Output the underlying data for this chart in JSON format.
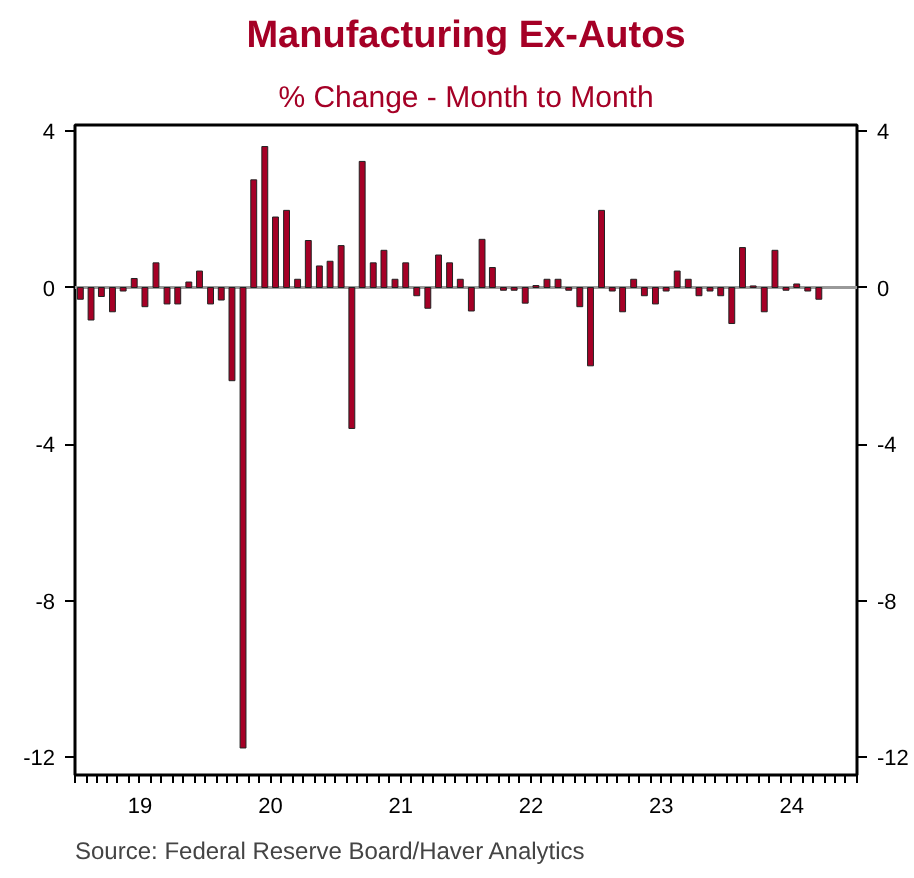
{
  "chart_data": {
    "type": "bar",
    "title": "Manufacturing Ex-Autos",
    "subtitle": "% Change - Month to Month",
    "annotations": [
      "Source:  Federal Reserve Board/Haver Analytics"
    ],
    "x": [
      "2019-01-16",
      "2019-02-15",
      "2019-03-16",
      "2019-04-16",
      "2019-05-16",
      "2019-06-16",
      "2019-07-16",
      "2019-08-16",
      "2019-09-16",
      "2019-10-16",
      "2019-11-16",
      "2019-12-16",
      "2020-01-16",
      "2020-02-15",
      "2020-03-16",
      "2020-04-16",
      "2020-05-16",
      "2020-06-16",
      "2020-07-16",
      "2020-08-16",
      "2020-09-16",
      "2020-10-16",
      "2020-11-16",
      "2020-12-16",
      "2021-01-16",
      "2021-02-15",
      "2021-03-16",
      "2021-04-16",
      "2021-05-16",
      "2021-06-16",
      "2021-07-16",
      "2021-08-16",
      "2021-09-16",
      "2021-10-16",
      "2021-11-16",
      "2021-12-16",
      "2022-01-16",
      "2022-02-15",
      "2022-03-16",
      "2022-04-16",
      "2022-05-16",
      "2022-06-16",
      "2022-07-16",
      "2022-08-16",
      "2022-09-16",
      "2022-10-16",
      "2022-11-16",
      "2022-12-16",
      "2023-01-16",
      "2023-02-15",
      "2023-03-16",
      "2023-04-16",
      "2023-05-16",
      "2023-06-16",
      "2023-07-16",
      "2023-08-16",
      "2023-09-16",
      "2023-10-16",
      "2023-11-16",
      "2023-12-16",
      "2024-01-16",
      "2024-02-15",
      "2024-03-16",
      "2024-04-16",
      "2024-05-16",
      "2024-06-16",
      "2024-07-16",
      "2024-08-16",
      "2024-09-16"
    ],
    "series": [
      {
        "color": "#a50026",
        "values": [
          -0.3,
          -0.83,
          -0.23,
          -0.62,
          -0.09,
          0.23,
          -0.49,
          0.63,
          -0.42,
          -0.42,
          0.14,
          0.42,
          -0.42,
          -0.32,
          -2.38,
          -11.76,
          2.75,
          3.6,
          1.8,
          1.97,
          0.21,
          1.2,
          0.55,
          0.67,
          1.07,
          -3.6,
          3.22,
          0.63,
          0.95,
          0.21,
          0.63,
          -0.21,
          -0.53,
          0.83,
          0.63,
          0.21,
          -0.6,
          1.23,
          0.51,
          -0.07,
          -0.07,
          -0.4,
          0.05,
          0.21,
          0.21,
          -0.07,
          -0.49,
          -2.0,
          1.97,
          -0.09,
          -0.62,
          0.21,
          -0.21,
          -0.42,
          -0.09,
          0.42,
          0.21,
          -0.21,
          -0.09,
          -0.21,
          -0.92,
          1.02,
          0.04,
          -0.62,
          0.95,
          -0.07,
          0.09,
          -0.09,
          -0.3
        ]
      }
    ],
    "xlim": [
      "2019-01-01",
      "2025-01-01"
    ],
    "xticks": [
      {
        "value": "2019-07-02",
        "label": "19"
      },
      {
        "value": "2020-07-02",
        "label": "20"
      },
      {
        "value": "2021-07-02",
        "label": "21"
      },
      {
        "value": "2022-07-02",
        "label": "22"
      },
      {
        "value": "2023-07-02",
        "label": "23"
      },
      {
        "value": "2024-07-02",
        "label": "24"
      }
    ],
    "ylim": [
      -12.45,
      4.15
    ],
    "yticks": [
      4,
      0,
      -4,
      -8,
      -12
    ],
    "y2lim": [
      -12.45,
      4.15
    ],
    "y2ticks": [
      4,
      0,
      -4,
      -8,
      -12
    ],
    "ref_lines": [
      {
        "axis": "y",
        "value": 0,
        "color": "#999999"
      }
    ],
    "grid": false
  }
}
